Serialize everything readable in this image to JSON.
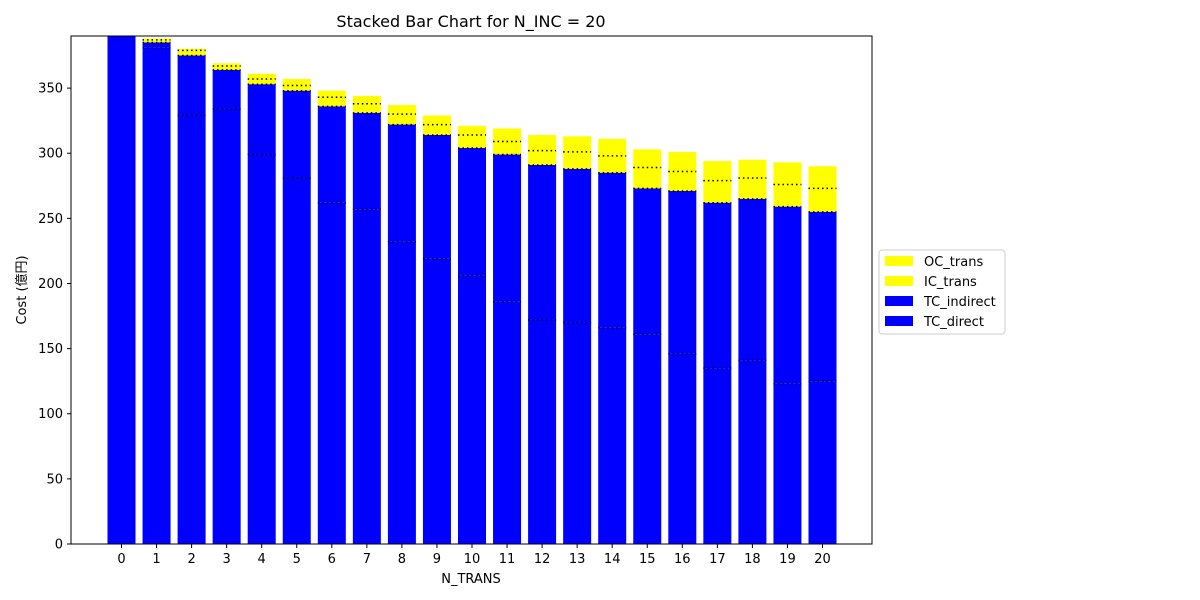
{
  "chart_data": {
    "type": "bar",
    "stacked": true,
    "title": "Stacked Bar Chart for N_INC = 20",
    "xlabel": "N_TRANS",
    "ylabel": "Cost (億円)",
    "ylim": [
      0,
      390
    ],
    "yticks": [
      0,
      50,
      100,
      150,
      200,
      250,
      300,
      350
    ],
    "grid": false,
    "legend_placement": "center-right-outside",
    "categories": [
      "0",
      "1",
      "2",
      "3",
      "4",
      "5",
      "6",
      "7",
      "8",
      "9",
      "10",
      "11",
      "12",
      "13",
      "14",
      "15",
      "16",
      "17",
      "18",
      "19",
      "20"
    ],
    "series": [
      {
        "name": "TC_direct",
        "color": "#0000ff",
        "values": [
          390,
          381,
          329,
          334,
          299,
          281,
          262,
          257,
          232,
          219,
          206,
          186,
          172,
          170,
          166,
          161,
          146,
          135,
          141,
          123,
          125
        ]
      },
      {
        "name": "TC_indirect",
        "color": "#0000ff",
        "values": [
          0,
          4,
          46,
          30,
          54,
          67,
          74,
          74,
          90,
          95,
          98,
          113,
          119,
          118,
          119,
          112,
          125,
          127,
          124,
          136,
          130
        ]
      },
      {
        "name": "IC_trans",
        "color": "#ffff00",
        "values": [
          0,
          2,
          4,
          3,
          4,
          4,
          7,
          7,
          8,
          8,
          10,
          10,
          11,
          13,
          13,
          16,
          15,
          17,
          16,
          17,
          18
        ]
      },
      {
        "name": "OC_trans",
        "color": "#ffff00",
        "values": [
          0,
          1,
          1,
          2,
          4,
          5,
          5,
          6,
          7,
          7,
          7,
          10,
          12,
          12,
          13,
          14,
          15,
          15,
          14,
          17,
          17
        ]
      }
    ]
  }
}
